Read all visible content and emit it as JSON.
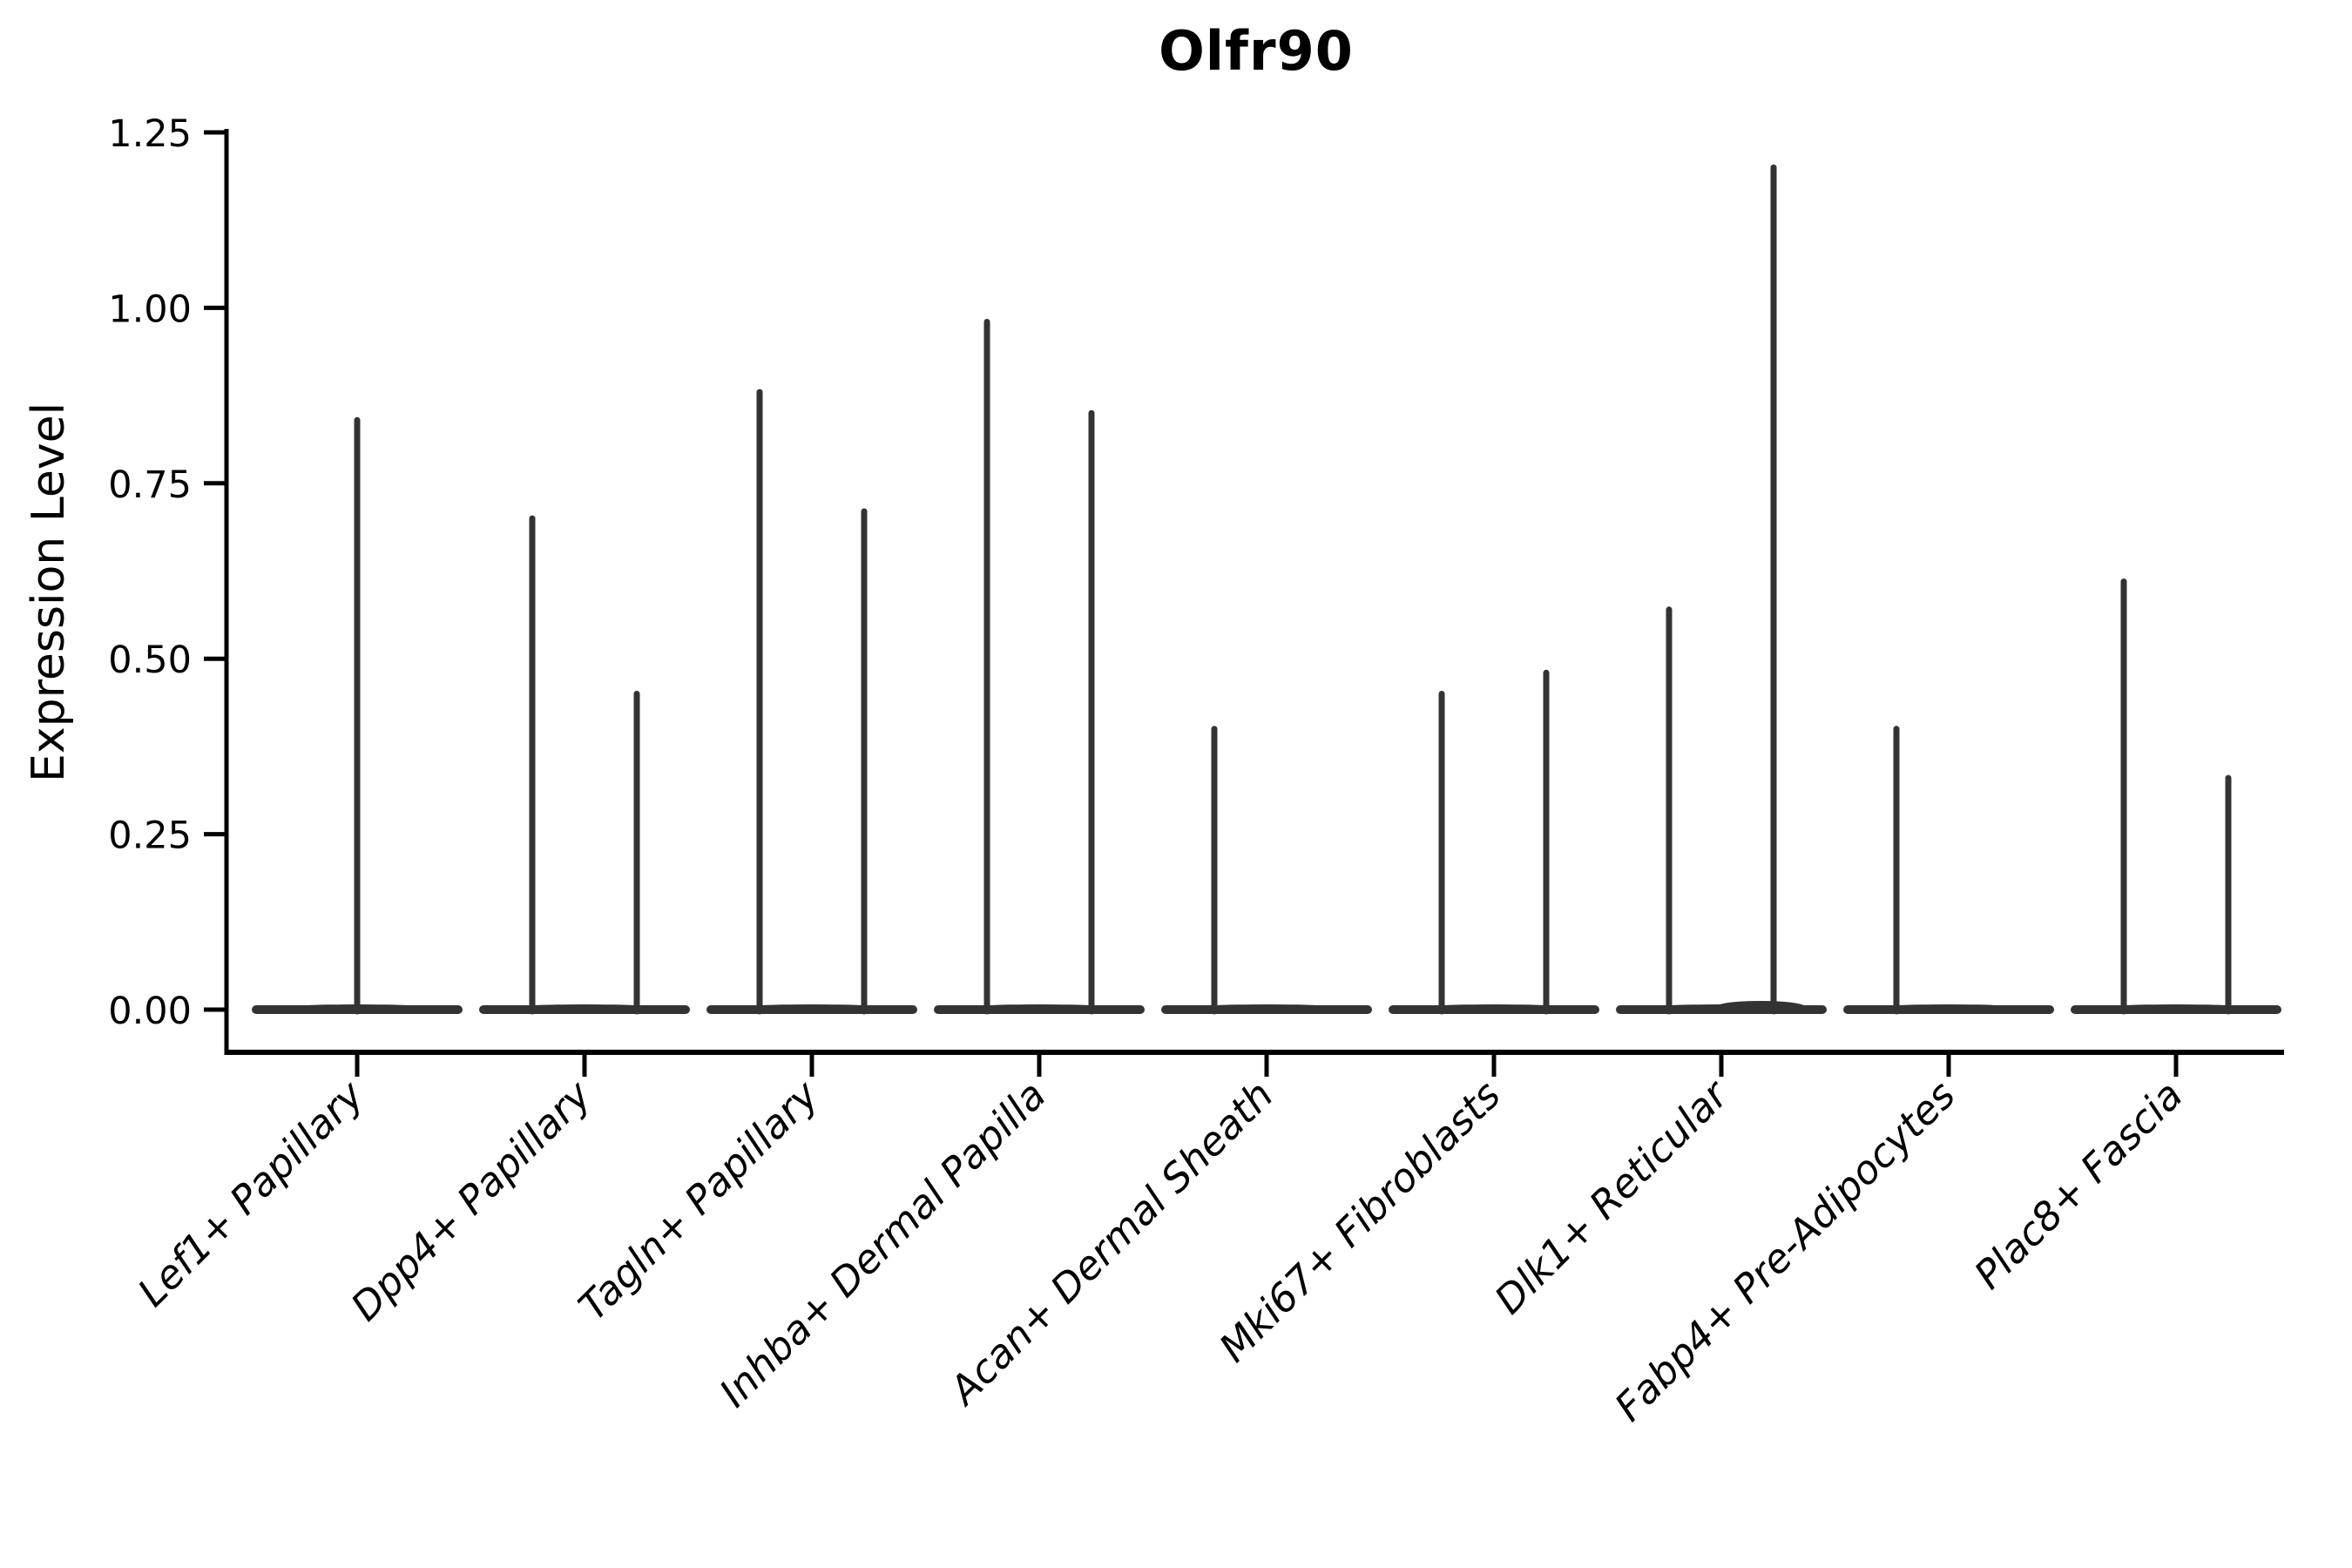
{
  "chart_data": {
    "type": "violin",
    "title": "Olfr90",
    "xlabel": "",
    "ylabel": "Expression Level",
    "ylim": [
      0,
      1.25
    ],
    "yticks": [
      0,
      0.25,
      0.5,
      0.75,
      1.0,
      1.25
    ],
    "ytick_labels": [
      "0.00",
      "0.25",
      "0.50",
      "0.75",
      "1.00",
      "1.25"
    ],
    "grid": false,
    "legend": null,
    "categories": [
      "Lef1+ Papillary",
      "Dpp4+ Papillary",
      "Tagln+ Papillary",
      "Inhba+ Dermal Papilla",
      "Acan+ Dermal Sheath",
      "Mki67+ Fibroblasts",
      "Dlk1+ Reticular",
      "Fabp4+ Pre-Adipocytes",
      "Plac8+ Fascia"
    ],
    "violins": [
      {
        "category": "Lef1+ Papillary",
        "spikes": [
          {
            "position": "center",
            "max": 0.84
          }
        ]
      },
      {
        "category": "Dpp4+ Papillary",
        "spikes": [
          {
            "position": "left",
            "max": 0.7
          },
          {
            "position": "right",
            "max": 0.45
          }
        ]
      },
      {
        "category": "Tagln+ Papillary",
        "spikes": [
          {
            "position": "left",
            "max": 0.88
          },
          {
            "position": "right",
            "max": 0.71
          }
        ]
      },
      {
        "category": "Inhba+ Dermal Papilla",
        "spikes": [
          {
            "position": "left",
            "max": 0.98
          },
          {
            "position": "right",
            "max": 0.85
          }
        ]
      },
      {
        "category": "Acan+ Dermal Sheath",
        "spikes": [
          {
            "position": "left",
            "max": 0.4
          }
        ]
      },
      {
        "category": "Mki67+ Fibroblasts",
        "spikes": [
          {
            "position": "left",
            "max": 0.45
          },
          {
            "position": "right",
            "max": 0.48
          }
        ]
      },
      {
        "category": "Dlk1+ Reticular",
        "spikes": [
          {
            "position": "left",
            "max": 0.57
          },
          {
            "position": "right",
            "max": 1.2,
            "base_bulge": true
          }
        ]
      },
      {
        "category": "Fabp4+ Pre-Adipocytes",
        "spikes": [
          {
            "position": "left",
            "max": 0.4
          }
        ]
      },
      {
        "category": "Plac8+ Fascia",
        "spikes": [
          {
            "position": "left",
            "max": 0.61
          },
          {
            "position": "right",
            "max": 0.33
          }
        ]
      }
    ],
    "colors": {
      "ink": "#000000",
      "violin": "#333333",
      "background": "#ffffff"
    }
  }
}
